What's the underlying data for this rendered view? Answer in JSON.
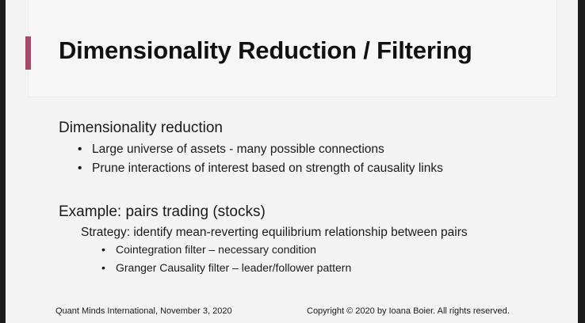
{
  "slide": {
    "title": "Dimensionality Reduction / Filtering",
    "sections": [
      {
        "heading": "Dimensionality reduction",
        "bullets": [
          "Large universe of assets - many possible connections",
          "Prune interactions of interest based on strength of causality links"
        ]
      },
      {
        "heading": "Example: pairs trading (stocks)",
        "sub_heading": "Strategy: identify mean-reverting equilibrium relationship between pairs",
        "bullets": [
          "Cointegration filter – necessary condition",
          "Granger Causality filter – leader/follower pattern"
        ]
      }
    ],
    "bullet_char": "•",
    "footer_left": "Quant Minds International, November 3, 2020",
    "footer_right": "Copyright © 2020 by Ioana Boier. All rights reserved."
  },
  "colors": {
    "accent": "#a14c6a",
    "background": "#f4f4f4",
    "frame": "#1c1c1c"
  }
}
